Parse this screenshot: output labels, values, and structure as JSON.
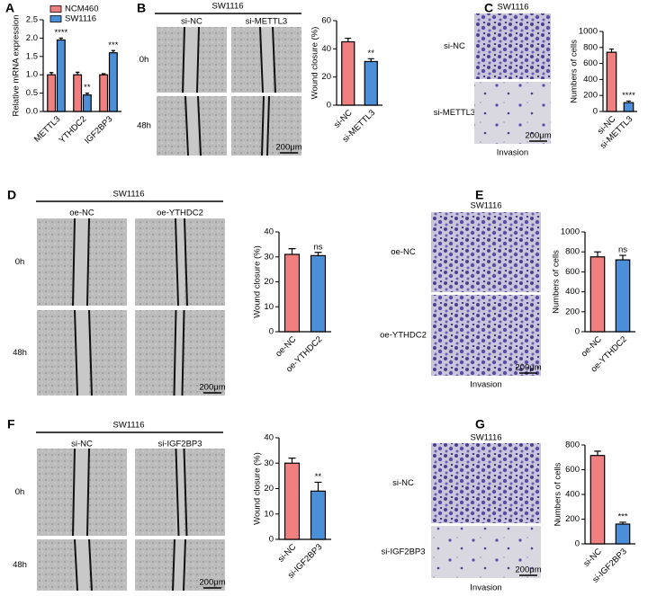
{
  "panels": [
    {
      "letter": "A"
    },
    {
      "letter": "B",
      "title": "SW1116",
      "columns": [
        "si-NC",
        "si-METTL3"
      ],
      "rows": [
        "0h",
        "48h"
      ],
      "scale": "200μm"
    },
    {
      "letter": "C",
      "title": "SW1116",
      "rows": [
        "si-NC",
        "si-METTL3"
      ],
      "scale": "200μm",
      "caption": "Invasion"
    },
    {
      "letter": "D",
      "title": "SW1116",
      "columns": [
        "oe-NC",
        "oe-YTHDC2"
      ],
      "rows": [
        "0h",
        "48h"
      ],
      "scale": "200μm"
    },
    {
      "letter": "E",
      "title": "SW1116",
      "rows": [
        "oe-NC",
        "oe-YTHDC2"
      ],
      "scale": "200μm",
      "caption": "Invasion"
    },
    {
      "letter": "F",
      "title": "SW1116",
      "columns": [
        "si-NC",
        "si-IGF2BP3"
      ],
      "rows": [
        "0h",
        "48h"
      ],
      "scale": "200μm"
    },
    {
      "letter": "G",
      "title": "SW1116",
      "rows": [
        "si-NC",
        "si-IGF2BP3"
      ],
      "scale": "200μm",
      "caption": "Invasion"
    }
  ],
  "chart_data": [
    {
      "type": "bar",
      "y_label": "Relative mRNA expression",
      "categories": [
        "METTL3",
        "YTHDC2",
        "IGF2BP3"
      ],
      "series": [
        {
          "name": "NCM460",
          "color": "#f08080",
          "values": [
            1.0,
            1.0,
            1.0
          ],
          "errors": [
            0.06,
            0.07,
            0.03
          ]
        },
        {
          "name": "SW1116",
          "color": "#4a8fd8",
          "values": [
            1.95,
            0.45,
            1.6
          ],
          "errors": [
            0.05,
            0.05,
            0.06
          ]
        }
      ],
      "annotations": [
        "****",
        "**",
        "***"
      ],
      "ylim": [
        0,
        2.5
      ],
      "yticks": [
        {
          "value": 0,
          "label": "0.0"
        },
        0.5,
        {
          "value": 1,
          "label": "1.0"
        },
        1.5,
        {
          "value": 2,
          "label": "2.0"
        },
        2.5
      ]
    },
    {
      "type": "bar",
      "y_label": "Wound closure (%)",
      "categories": [
        "si-NC",
        "si-METTL3"
      ],
      "values": [
        45,
        31
      ],
      "errors": [
        2.5,
        2
      ],
      "colors": [
        "#f08080",
        "#4a8fd8"
      ],
      "annotation": "**",
      "ylim": [
        0,
        60
      ],
      "yticks": [
        0,
        20,
        40,
        60
      ]
    },
    {
      "type": "bar",
      "y_label": "Numbers of cells",
      "categories": [
        "si-NC",
        "si-METTL3"
      ],
      "values": [
        740,
        110
      ],
      "errors": [
        40,
        20
      ],
      "colors": [
        "#f08080",
        "#4a8fd8"
      ],
      "annotation": "****",
      "ylim": [
        0,
        1000
      ],
      "yticks": [
        0,
        200,
        400,
        600,
        800,
        1000
      ]
    },
    {
      "type": "bar",
      "y_label": "Wound closure (%)",
      "categories": [
        "oe-NC",
        "oe-YTHDC2"
      ],
      "values": [
        31,
        30.5
      ],
      "errors": [
        2.3,
        1.3
      ],
      "colors": [
        "#f08080",
        "#4a8fd8"
      ],
      "annotation": "ns",
      "ylim": [
        0,
        40
      ],
      "yticks": [
        0,
        10,
        20,
        30,
        40
      ]
    },
    {
      "type": "bar",
      "y_label": "Numbers of cells",
      "categories": [
        "oe-NC",
        "oe-YTHDC2"
      ],
      "values": [
        750,
        720
      ],
      "errors": [
        50,
        45
      ],
      "colors": [
        "#f08080",
        "#4a8fd8"
      ],
      "annotation": "ns",
      "ylim": [
        0,
        1000
      ],
      "yticks": [
        0,
        200,
        400,
        600,
        800,
        1000
      ]
    },
    {
      "type": "bar",
      "y_label": "Wound closure (%)",
      "categories": [
        "si-NC",
        "si-IGF2BP3"
      ],
      "values": [
        30,
        19
      ],
      "errors": [
        2,
        3.5
      ],
      "colors": [
        "#f08080",
        "#4a8fd8"
      ],
      "annotation": "**",
      "ylim": [
        0,
        40
      ],
      "yticks": [
        0,
        10,
        20,
        30,
        40
      ]
    },
    {
      "type": "bar",
      "y_label": "Numbers of cells",
      "categories": [
        "si-NC",
        "si-IGF2BP3"
      ],
      "values": [
        715,
        160
      ],
      "errors": [
        35,
        15
      ],
      "colors": [
        "#f08080",
        "#4a8fd8"
      ],
      "annotation": "***",
      "ylim": [
        0,
        800
      ],
      "yticks": [
        0,
        200,
        400,
        600,
        800
      ]
    }
  ]
}
